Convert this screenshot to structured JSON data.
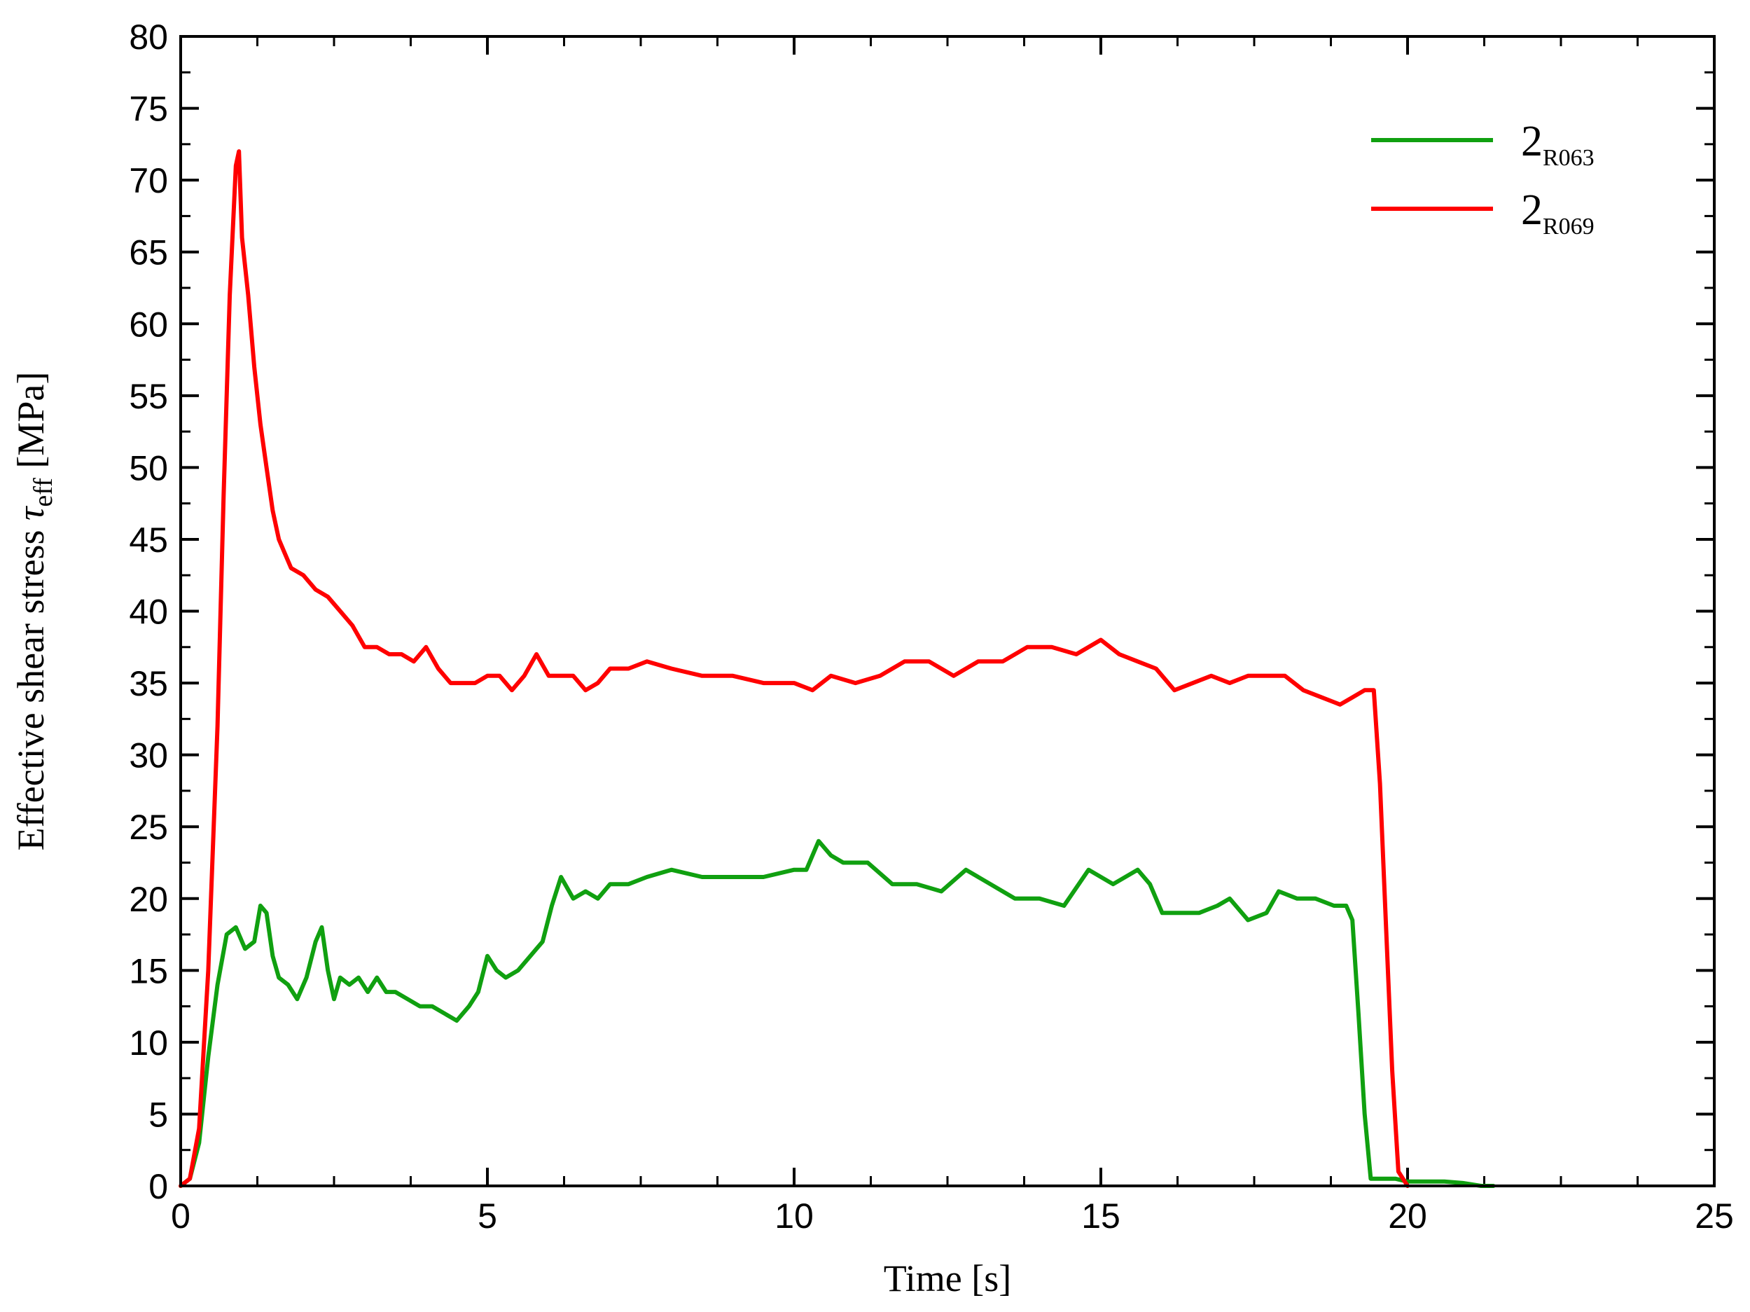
{
  "chart_data": {
    "type": "line",
    "xlabel": "Time [s]",
    "ylabel": {
      "prefix": "Effective shear stress ",
      "symbol": "τ",
      "subscript": "eff",
      "suffix": " [MPa]"
    },
    "xlim": [
      0,
      25
    ],
    "ylim": [
      0,
      80
    ],
    "x_ticks": [
      "0",
      "5",
      "10",
      "15",
      "20",
      "25"
    ],
    "y_ticks": [
      "0",
      "5",
      "10",
      "15",
      "20",
      "25",
      "30",
      "35",
      "40",
      "45",
      "50",
      "55",
      "60",
      "65",
      "70",
      "75",
      "80"
    ],
    "grid": false,
    "legend_position": "top-right",
    "series": [
      {
        "name": "2",
        "name_subscript": "R063",
        "color": "#10a010",
        "x": [
          0,
          0.15,
          0.3,
          0.45,
          0.6,
          0.75,
          0.9,
          1.05,
          1.2,
          1.3,
          1.4,
          1.5,
          1.6,
          1.75,
          1.9,
          2.05,
          2.2,
          2.3,
          2.4,
          2.5,
          2.6,
          2.75,
          2.9,
          3.05,
          3.2,
          3.35,
          3.5,
          3.7,
          3.9,
          4.1,
          4.3,
          4.5,
          4.7,
          4.85,
          5.0,
          5.15,
          5.3,
          5.5,
          5.7,
          5.9,
          6.05,
          6.2,
          6.4,
          6.6,
          6.8,
          7.0,
          7.3,
          7.6,
          8.0,
          8.5,
          9.0,
          9.5,
          10.0,
          10.2,
          10.4,
          10.6,
          10.8,
          11.2,
          11.6,
          12.0,
          12.4,
          12.8,
          13.2,
          13.6,
          14.0,
          14.4,
          14.8,
          15.2,
          15.6,
          15.8,
          16.0,
          16.3,
          16.6,
          16.9,
          17.1,
          17.4,
          17.7,
          17.9,
          18.2,
          18.5,
          18.8,
          19.0,
          19.1,
          19.2,
          19.3,
          19.4,
          19.6,
          19.8,
          20.0,
          20.3,
          20.6,
          20.9,
          21.2,
          21.4
        ],
        "y": [
          0,
          0.5,
          3,
          9,
          14,
          17.5,
          18,
          16.5,
          17,
          19.5,
          19,
          16,
          14.5,
          14,
          13,
          14.5,
          17,
          18,
          15,
          13,
          14.5,
          14,
          14.5,
          13.5,
          14.5,
          13.5,
          13.5,
          13,
          12.5,
          12.5,
          12,
          11.5,
          12.5,
          13.5,
          16,
          15,
          14.5,
          15,
          16,
          17,
          19.5,
          21.5,
          20,
          20.5,
          20,
          21,
          21,
          21.5,
          22,
          21.5,
          21.5,
          21.5,
          22,
          22,
          24,
          23,
          22.5,
          22.5,
          21,
          21,
          20.5,
          22,
          21,
          20,
          20,
          19.5,
          22,
          21,
          22,
          21,
          19,
          19,
          19,
          19.5,
          20,
          18.5,
          19,
          20.5,
          20,
          20,
          19.5,
          19.5,
          18.5,
          12,
          5,
          0.5,
          0.5,
          0.5,
          0.3,
          0.3,
          0.3,
          0.2,
          0,
          0
        ]
      },
      {
        "name": "2",
        "name_subscript": "R069",
        "color": "#ff0000",
        "x": [
          0,
          0.15,
          0.3,
          0.45,
          0.6,
          0.7,
          0.8,
          0.9,
          0.95,
          1.0,
          1.1,
          1.2,
          1.3,
          1.4,
          1.5,
          1.6,
          1.7,
          1.8,
          2.0,
          2.2,
          2.4,
          2.6,
          2.8,
          3.0,
          3.2,
          3.4,
          3.6,
          3.8,
          4.0,
          4.2,
          4.4,
          4.6,
          4.8,
          5.0,
          5.2,
          5.4,
          5.6,
          5.8,
          6.0,
          6.2,
          6.4,
          6.6,
          6.8,
          7.0,
          7.3,
          7.6,
          8.0,
          8.5,
          9.0,
          9.5,
          10.0,
          10.3,
          10.6,
          11.0,
          11.4,
          11.8,
          12.2,
          12.6,
          13.0,
          13.4,
          13.8,
          14.2,
          14.6,
          15.0,
          15.3,
          15.6,
          15.9,
          16.2,
          16.5,
          16.8,
          17.1,
          17.4,
          17.7,
          18.0,
          18.3,
          18.6,
          18.9,
          19.1,
          19.3,
          19.45,
          19.55,
          19.65,
          19.75,
          19.85,
          20.0
        ],
        "y": [
          0,
          0.5,
          4,
          15,
          32,
          48,
          62,
          71,
          72,
          66,
          62,
          57,
          53,
          50,
          47,
          45,
          44,
          43,
          42.5,
          41.5,
          41,
          40,
          39,
          37.5,
          37.5,
          37,
          37,
          36.5,
          37.5,
          36,
          35,
          35,
          35,
          35.5,
          35.5,
          34.5,
          35.5,
          37,
          35.5,
          35.5,
          35.5,
          34.5,
          35,
          36,
          36,
          36.5,
          36,
          35.5,
          35.5,
          35,
          35,
          34.5,
          35.5,
          35,
          35.5,
          36.5,
          36.5,
          35.5,
          36.5,
          36.5,
          37.5,
          37.5,
          37,
          38,
          37,
          36.5,
          36,
          34.5,
          35,
          35.5,
          35,
          35.5,
          35.5,
          35.5,
          34.5,
          34,
          33.5,
          34,
          34.5,
          34.5,
          28,
          18,
          8,
          1,
          0
        ]
      }
    ]
  }
}
